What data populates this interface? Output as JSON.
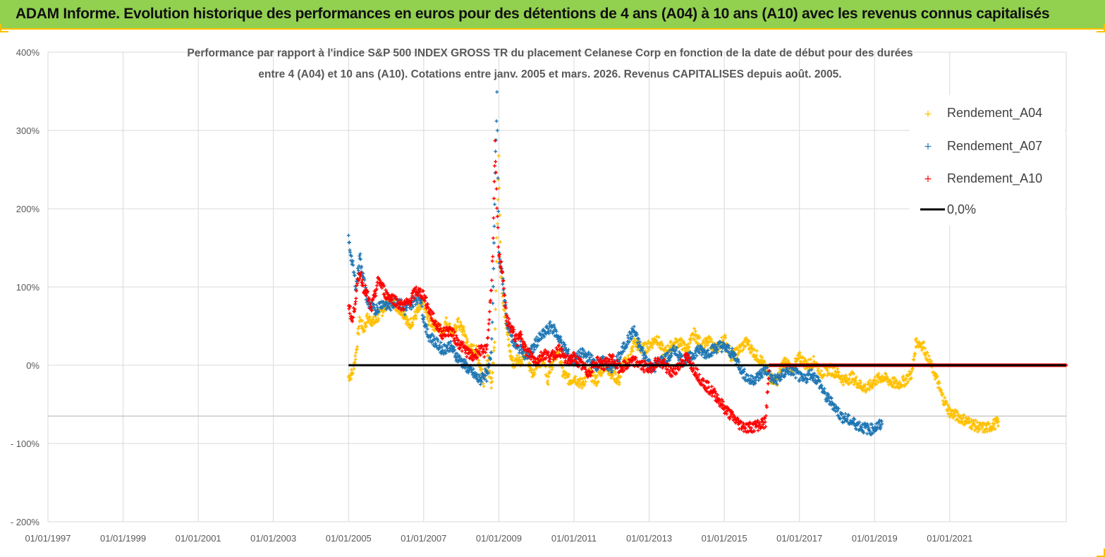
{
  "banner": {
    "title": "ADAM Informe. Evolution historique des performances en euros pour des détentions de 4 ans (A04) à 10 ans (A10) avec les revenus connus capitalisés"
  },
  "colors": {
    "banner_bg": "#92d050",
    "banner_border": "#ffc000",
    "A04": "#ffc000",
    "A07": "#1f77b4",
    "A10": "#ff0000",
    "zero_line": "#000000",
    "grid": "#d9d9d9"
  },
  "chart_data": {
    "type": "scatter",
    "title_line1": "Performance par rapport à l'indice S&P 500 INDEX GROSS TR  du placement Celanese Corp en fonction de la date de début pour des durées",
    "title_line2": "entre 4 (A04) et 10 ans (A10). Cotations entre janv. 2005 et mars. 2026. Revenus CAPITALISES depuis août. 2005.",
    "x_tick_labels": [
      "01/01/1997",
      "01/01/1999",
      "01/01/2001",
      "01/01/2003",
      "01/01/2005",
      "01/01/2007",
      "01/01/2009",
      "01/01/2011",
      "01/01/2013",
      "01/01/2015",
      "01/01/2017",
      "01/01/2019",
      "01/01/2021"
    ],
    "y_tick_labels": [
      "400%",
      "300%",
      "200%",
      "100%",
      "0%",
      "- 100%",
      "- 200%"
    ],
    "xlim": [
      1997.0,
      2024.1
    ],
    "ylim": [
      -200,
      400
    ],
    "grid": true,
    "legend_position": "top-right",
    "legend": [
      "Rendement_A04",
      "Rendement_A07",
      "Rendement_A10",
      "0,0%"
    ],
    "zero_line": {
      "name": "0,0%",
      "x_start": 2005.0,
      "x_end": 2024.1,
      "y": 0
    },
    "series": [
      {
        "name": "Rendement_A04",
        "color": "#ffc000",
        "points": [
          [
            2005.0,
            -15
          ],
          [
            2005.1,
            -10
          ],
          [
            2005.2,
            15
          ],
          [
            2005.3,
            60
          ],
          [
            2005.4,
            45
          ],
          [
            2005.5,
            60
          ],
          [
            2005.7,
            55
          ],
          [
            2005.9,
            70
          ],
          [
            2006.1,
            85
          ],
          [
            2006.3,
            75
          ],
          [
            2006.5,
            65
          ],
          [
            2006.6,
            50
          ],
          [
            2006.8,
            65
          ],
          [
            2007.0,
            80
          ],
          [
            2007.1,
            60
          ],
          [
            2007.3,
            50
          ],
          [
            2007.5,
            45
          ],
          [
            2007.6,
            55
          ],
          [
            2007.8,
            40
          ],
          [
            2007.9,
            55
          ],
          [
            2008.1,
            40
          ],
          [
            2008.2,
            20
          ],
          [
            2008.4,
            20
          ],
          [
            2008.5,
            0
          ],
          [
            2008.6,
            -20
          ],
          [
            2008.7,
            10
          ],
          [
            2008.8,
            -30
          ],
          [
            2008.9,
            40
          ],
          [
            2008.95,
            160
          ],
          [
            2009.0,
            270
          ],
          [
            2009.05,
            120
          ],
          [
            2009.1,
            90
          ],
          [
            2009.2,
            50
          ],
          [
            2009.3,
            15
          ],
          [
            2009.4,
            0
          ],
          [
            2009.5,
            10
          ],
          [
            2009.6,
            5
          ],
          [
            2009.7,
            20
          ],
          [
            2009.8,
            0
          ],
          [
            2009.9,
            -10
          ],
          [
            2010.0,
            0
          ],
          [
            2010.2,
            10
          ],
          [
            2010.3,
            -20
          ],
          [
            2010.4,
            0
          ],
          [
            2010.6,
            20
          ],
          [
            2010.7,
            -10
          ],
          [
            2010.9,
            -20
          ],
          [
            2011.0,
            -15
          ],
          [
            2011.2,
            -25
          ],
          [
            2011.4,
            -10
          ],
          [
            2011.6,
            -20
          ],
          [
            2011.8,
            0
          ],
          [
            2012.0,
            -10
          ],
          [
            2012.2,
            -20
          ],
          [
            2012.3,
            0
          ],
          [
            2012.5,
            10
          ],
          [
            2012.6,
            30
          ],
          [
            2012.8,
            20
          ],
          [
            2013.0,
            25
          ],
          [
            2013.2,
            35
          ],
          [
            2013.4,
            15
          ],
          [
            2013.6,
            25
          ],
          [
            2013.8,
            30
          ],
          [
            2014.0,
            20
          ],
          [
            2014.2,
            40
          ],
          [
            2014.4,
            25
          ],
          [
            2014.6,
            30
          ],
          [
            2014.8,
            20
          ],
          [
            2015.0,
            35
          ],
          [
            2015.2,
            10
          ],
          [
            2015.4,
            20
          ],
          [
            2015.6,
            30
          ],
          [
            2015.8,
            15
          ],
          [
            2016.0,
            5
          ],
          [
            2016.2,
            -15
          ],
          [
            2016.4,
            -20
          ],
          [
            2016.6,
            5
          ],
          [
            2016.8,
            -5
          ],
          [
            2017.0,
            10
          ],
          [
            2017.2,
            0
          ],
          [
            2017.4,
            5
          ],
          [
            2017.6,
            -10
          ],
          [
            2017.8,
            -5
          ],
          [
            2018.0,
            -10
          ],
          [
            2018.2,
            -20
          ],
          [
            2018.4,
            -15
          ],
          [
            2018.6,
            -25
          ],
          [
            2018.8,
            -30
          ],
          [
            2019.0,
            -20
          ],
          [
            2019.2,
            -15
          ],
          [
            2019.4,
            -20
          ],
          [
            2019.6,
            -25
          ],
          [
            2019.8,
            -20
          ],
          [
            2020.0,
            -10
          ],
          [
            2020.1,
            30
          ],
          [
            2020.3,
            25
          ],
          [
            2020.4,
            10
          ],
          [
            2020.6,
            -10
          ],
          [
            2020.8,
            -40
          ],
          [
            2021.0,
            -60
          ],
          [
            2021.2,
            -65
          ],
          [
            2021.4,
            -70
          ],
          [
            2021.6,
            -75
          ],
          [
            2021.8,
            -80
          ],
          [
            2022.0,
            -80
          ],
          [
            2022.2,
            -75
          ],
          [
            2022.3,
            -72
          ]
        ]
      },
      {
        "name": "Rendement_A07",
        "color": "#1f77b4",
        "points": [
          [
            2005.0,
            160
          ],
          [
            2005.1,
            130
          ],
          [
            2005.2,
            100
          ],
          [
            2005.3,
            140
          ],
          [
            2005.4,
            110
          ],
          [
            2005.5,
            80
          ],
          [
            2005.7,
            70
          ],
          [
            2005.9,
            80
          ],
          [
            2006.1,
            75
          ],
          [
            2006.3,
            85
          ],
          [
            2006.5,
            70
          ],
          [
            2006.7,
            80
          ],
          [
            2006.9,
            90
          ],
          [
            2007.0,
            60
          ],
          [
            2007.1,
            40
          ],
          [
            2007.3,
            30
          ],
          [
            2007.5,
            20
          ],
          [
            2007.7,
            25
          ],
          [
            2007.9,
            10
          ],
          [
            2008.1,
            0
          ],
          [
            2008.3,
            -10
          ],
          [
            2008.5,
            -20
          ],
          [
            2008.6,
            -10
          ],
          [
            2008.7,
            -15
          ],
          [
            2008.8,
            20
          ],
          [
            2008.85,
            100
          ],
          [
            2008.9,
            240
          ],
          [
            2008.95,
            345
          ],
          [
            2009.0,
            140
          ],
          [
            2009.1,
            110
          ],
          [
            2009.2,
            60
          ],
          [
            2009.3,
            40
          ],
          [
            2009.4,
            30
          ],
          [
            2009.5,
            20
          ],
          [
            2009.6,
            25
          ],
          [
            2009.7,
            10
          ],
          [
            2009.9,
            20
          ],
          [
            2010.0,
            30
          ],
          [
            2010.2,
            40
          ],
          [
            2010.4,
            50
          ],
          [
            2010.6,
            35
          ],
          [
            2010.7,
            25
          ],
          [
            2010.9,
            10
          ],
          [
            2011.0,
            5
          ],
          [
            2011.2,
            15
          ],
          [
            2011.4,
            10
          ],
          [
            2011.6,
            0
          ],
          [
            2011.8,
            5
          ],
          [
            2012.0,
            -5
          ],
          [
            2012.2,
            10
          ],
          [
            2012.4,
            30
          ],
          [
            2012.6,
            45
          ],
          [
            2012.7,
            30
          ],
          [
            2012.9,
            10
          ],
          [
            2013.1,
            -5
          ],
          [
            2013.3,
            5
          ],
          [
            2013.5,
            10
          ],
          [
            2013.7,
            20
          ],
          [
            2013.9,
            5
          ],
          [
            2014.1,
            10
          ],
          [
            2014.3,
            20
          ],
          [
            2014.5,
            15
          ],
          [
            2014.7,
            20
          ],
          [
            2014.9,
            25
          ],
          [
            2015.1,
            20
          ],
          [
            2015.3,
            10
          ],
          [
            2015.5,
            -10
          ],
          [
            2015.7,
            -20
          ],
          [
            2015.9,
            -15
          ],
          [
            2016.1,
            -5
          ],
          [
            2016.3,
            -20
          ],
          [
            2016.5,
            -15
          ],
          [
            2016.7,
            -5
          ],
          [
            2016.9,
            -10
          ],
          [
            2017.1,
            -20
          ],
          [
            2017.3,
            -10
          ],
          [
            2017.5,
            -20
          ],
          [
            2017.7,
            -40
          ],
          [
            2017.9,
            -50
          ],
          [
            2018.1,
            -65
          ],
          [
            2018.3,
            -70
          ],
          [
            2018.5,
            -75
          ],
          [
            2018.7,
            -80
          ],
          [
            2018.9,
            -82
          ],
          [
            2019.1,
            -78
          ],
          [
            2019.2,
            -75
          ]
        ]
      },
      {
        "name": "Rendement_A10",
        "color": "#ff0000",
        "points": [
          [
            2005.0,
            80
          ],
          [
            2005.1,
            55
          ],
          [
            2005.2,
            90
          ],
          [
            2005.3,
            120
          ],
          [
            2005.4,
            100
          ],
          [
            2005.5,
            90
          ],
          [
            2005.6,
            70
          ],
          [
            2005.8,
            110
          ],
          [
            2006.0,
            90
          ],
          [
            2006.2,
            85
          ],
          [
            2006.4,
            75
          ],
          [
            2006.6,
            80
          ],
          [
            2006.8,
            95
          ],
          [
            2007.0,
            90
          ],
          [
            2007.1,
            75
          ],
          [
            2007.3,
            55
          ],
          [
            2007.5,
            40
          ],
          [
            2007.7,
            45
          ],
          [
            2007.9,
            30
          ],
          [
            2008.1,
            20
          ],
          [
            2008.3,
            10
          ],
          [
            2008.5,
            20
          ],
          [
            2008.6,
            15
          ],
          [
            2008.7,
            30
          ],
          [
            2008.8,
            100
          ],
          [
            2008.85,
            160
          ],
          [
            2008.9,
            280
          ],
          [
            2008.95,
            200
          ],
          [
            2009.0,
            140
          ],
          [
            2009.1,
            120
          ],
          [
            2009.2,
            60
          ],
          [
            2009.3,
            50
          ],
          [
            2009.4,
            40
          ],
          [
            2009.5,
            30
          ],
          [
            2009.6,
            40
          ],
          [
            2009.7,
            20
          ],
          [
            2009.9,
            10
          ],
          [
            2010.0,
            5
          ],
          [
            2010.2,
            15
          ],
          [
            2010.4,
            10
          ],
          [
            2010.6,
            20
          ],
          [
            2010.8,
            5
          ],
          [
            2011.0,
            10
          ],
          [
            2011.2,
            0
          ],
          [
            2011.4,
            -10
          ],
          [
            2011.6,
            5
          ],
          [
            2011.8,
            0
          ],
          [
            2012.0,
            10
          ],
          [
            2012.2,
            -5
          ],
          [
            2012.4,
            0
          ],
          [
            2012.6,
            5
          ],
          [
            2012.8,
            0
          ],
          [
            2013.0,
            -5
          ],
          [
            2013.2,
            5
          ],
          [
            2013.4,
            0
          ],
          [
            2013.6,
            -10
          ],
          [
            2013.8,
            0
          ],
          [
            2014.0,
            10
          ],
          [
            2014.2,
            -5
          ],
          [
            2014.4,
            -20
          ],
          [
            2014.6,
            -30
          ],
          [
            2014.8,
            -40
          ],
          [
            2015.0,
            -55
          ],
          [
            2015.2,
            -65
          ],
          [
            2015.4,
            -75
          ],
          [
            2015.6,
            -80
          ],
          [
            2015.8,
            -78
          ],
          [
            2016.0,
            -75
          ],
          [
            2016.1,
            -73
          ],
          [
            2016.2,
            0
          ],
          [
            2017.0,
            0
          ],
          [
            2018.0,
            0
          ],
          [
            2019.0,
            0
          ],
          [
            2020.0,
            0
          ],
          [
            2021.0,
            0
          ],
          [
            2022.0,
            0
          ],
          [
            2023.0,
            0
          ],
          [
            2024.1,
            0
          ]
        ]
      }
    ]
  }
}
